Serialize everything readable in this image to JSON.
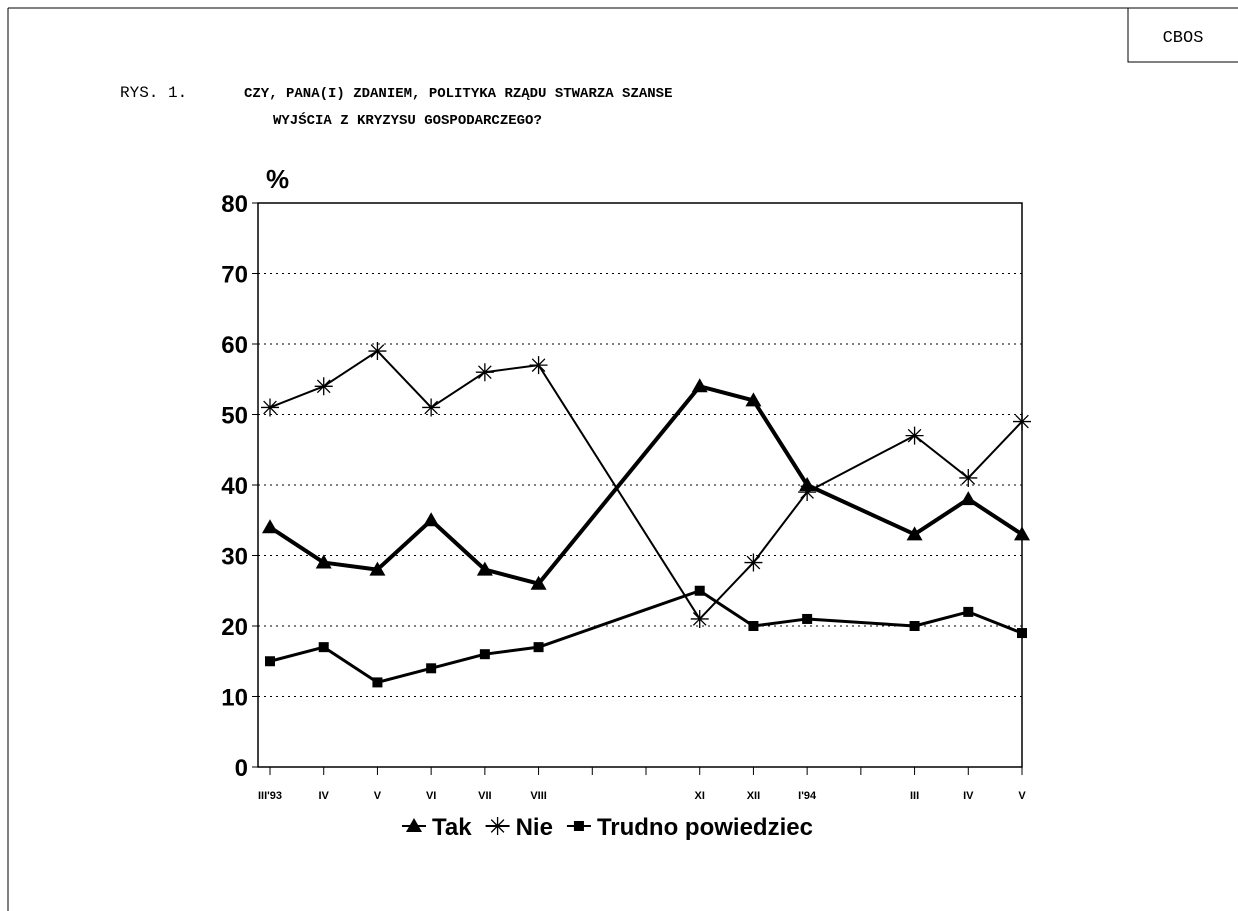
{
  "header": {
    "source": "CBOS",
    "figure_label": "RYS. 1.",
    "title_line1": "CZY, PANA(I) ZDANIEM, POLITYKA RZĄDU STWARZA SZANSE",
    "title_line2": "WYJŚCIA Z KRYZYSU GOSPODARCZEGO?"
  },
  "chart_data": {
    "type": "line",
    "y_label": "%",
    "categories": [
      "III'93",
      "IV",
      "V",
      "VI",
      "VII",
      "VIII",
      "XI",
      "XII",
      "I'94",
      "III",
      "IV",
      "V"
    ],
    "series": [
      {
        "name": "Tak",
        "color": "#000000",
        "marker": "triangle",
        "values": [
          34,
          29,
          28,
          35,
          28,
          26,
          54,
          52,
          40,
          33,
          38,
          33
        ]
      },
      {
        "name": "Nie",
        "color": "#000000",
        "marker": "asterisk",
        "values": [
          51,
          54,
          59,
          51,
          56,
          57,
          21,
          29,
          39,
          47,
          41,
          49
        ]
      },
      {
        "name": "Trudno powiedziec",
        "color": "#000000",
        "marker": "square",
        "values": [
          15,
          17,
          12,
          14,
          16,
          17,
          25,
          20,
          21,
          20,
          22,
          19
        ]
      }
    ],
    "ylim": [
      0,
      80
    ],
    "yticks": [
      0,
      10,
      20,
      30,
      40,
      50,
      60,
      70,
      80
    ],
    "grid": true,
    "legend": "bottom"
  }
}
